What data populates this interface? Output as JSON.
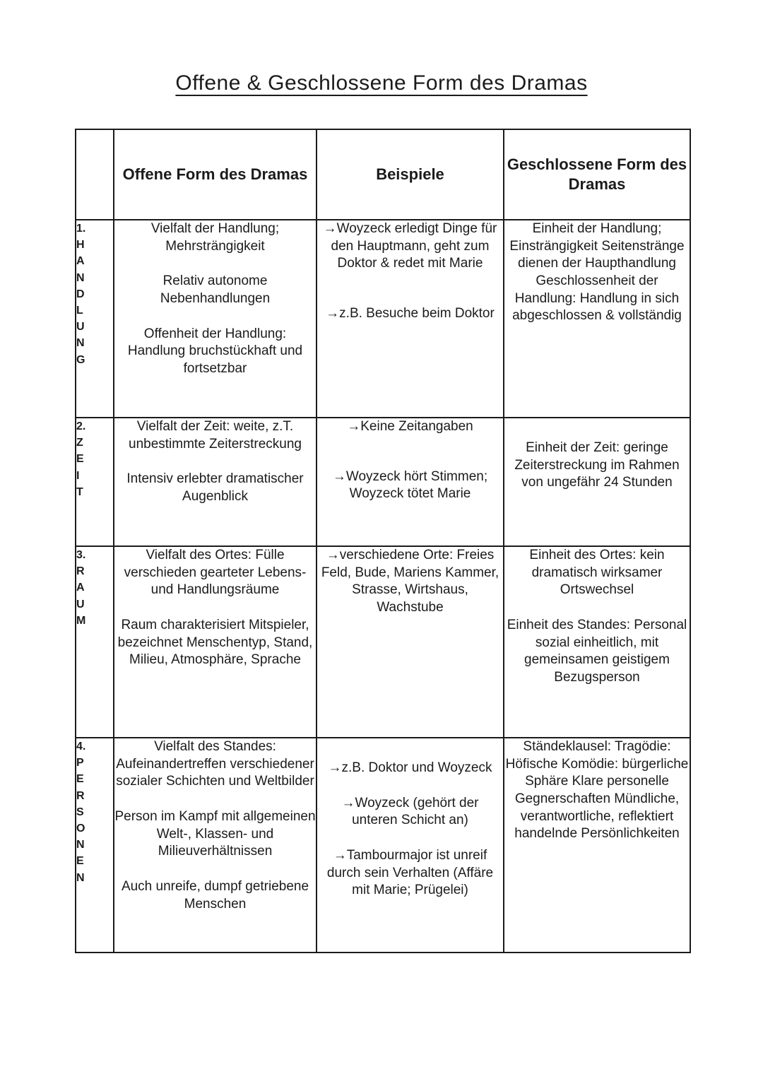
{
  "title": "Offene & Geschlossene Form des Dramas",
  "colors": {
    "ink": "#1b1b1b",
    "paper": "#ffffff"
  },
  "table": {
    "headers": {
      "corner": "",
      "open": "Offene Form des Dramas",
      "examples": "Beispiele",
      "closed": "Geschlossene Form des Dramas"
    },
    "rows": [
      {
        "number": "1.",
        "label": "HANDLUNG",
        "open": [
          "Vielfalt der Handlung; Mehrsträngigkeit",
          "Relativ autonome Nebenhandlungen",
          "Offenheit der Handlung: Handlung bruchstückhaft und fortsetzbar"
        ],
        "examples": [
          "→Woyzeck erledigt Dinge für den Hauptmann, geht zum Doktor & redet mit Marie",
          "→z.B. Besuche beim Doktor"
        ],
        "closed": [
          "Einheit der Handlung; Einsträngigkeit Seitenstränge dienen der Haupthandlung Geschlossenheit der Handlung: Handlung in sich abgeschlossen & vollständig"
        ]
      },
      {
        "number": "2.",
        "label": "ZEIT",
        "open": [
          "Vielfalt der Zeit: weite, z.T. unbestimmte Zeiterstreckung",
          "Intensiv erlebter dramatischer Augenblick"
        ],
        "examples": [
          "→Keine Zeitangaben",
          "→Woyzeck hört Stimmen; Woyzeck tötet Marie"
        ],
        "closed": [
          "Einheit der Zeit: geringe Zeiterstreckung im Rahmen von ungefähr 24 Stunden"
        ]
      },
      {
        "number": "3.",
        "label": "RAUM",
        "open": [
          "Vielfalt des Ortes: Fülle verschieden gearteter Lebens- und Handlungsräume",
          "Raum charakterisiert Mitspieler, bezeichnet Menschentyp, Stand, Milieu, Atmosphäre, Sprache"
        ],
        "examples": [
          "→verschiedene Orte: Freies Feld, Bude, Mariens Kammer, Strasse, Wirtshaus, Wachstube"
        ],
        "closed": [
          "Einheit des Ortes: kein dramatisch wirksamer Ortswechsel",
          "Einheit des Standes: Personal sozial einheitlich, mit gemeinsamen geistigem Bezugsperson"
        ]
      },
      {
        "number": "4.",
        "label": "PERSONEN",
        "open": [
          "Vielfalt des Standes: Aufeinandertreffen verschiedener sozialer Schichten und Weltbilder",
          "Person im Kampf mit allgemeinen Welt-, Klassen- und Milieuverhältnissen",
          "Auch unreife, dumpf getriebene Menschen"
        ],
        "examples": [
          "→z.B. Doktor und Woyzeck",
          "→Woyzeck (gehört der unteren Schicht an)",
          "→Tambourmajor ist unreif durch sein Verhalten (Affäre mit Marie; Prügelei)"
        ],
        "closed": [
          "Ständeklausel: Tragödie: Höfische Komödie: bürgerliche Sphäre Klare personelle Gegnerschaften Mündliche, verantwortliche, reflektiert handelnde Persönlichkeiten"
        ]
      }
    ]
  }
}
